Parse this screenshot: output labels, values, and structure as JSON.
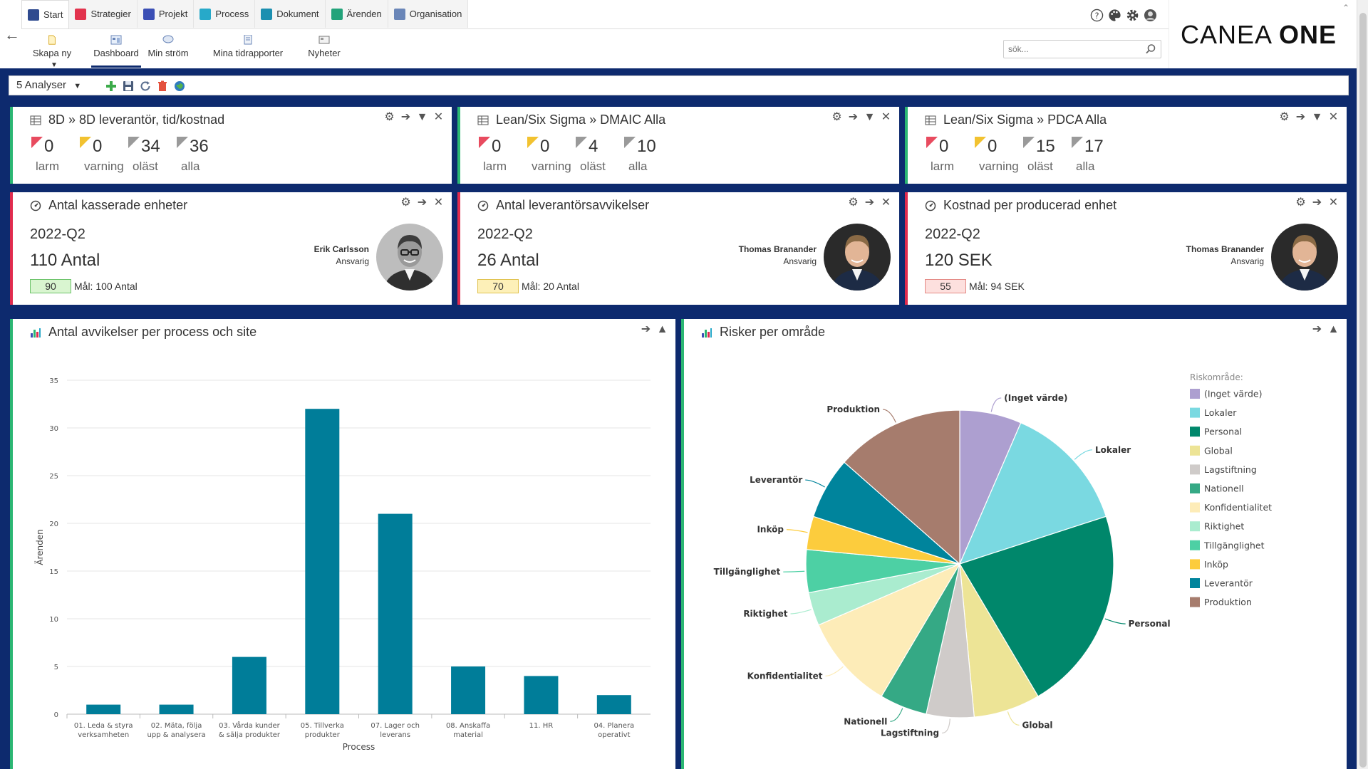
{
  "nav": {
    "tabs": [
      {
        "label": "Start",
        "icon": "home-icon",
        "color": "#2f4a8f"
      },
      {
        "label": "Strategier",
        "icon": "strategy-icon",
        "color": "#e2334d"
      },
      {
        "label": "Projekt",
        "icon": "project-icon",
        "color": "#3b4fb5"
      },
      {
        "label": "Process",
        "icon": "process-icon",
        "color": "#27a9c9"
      },
      {
        "label": "Dokument",
        "icon": "document-icon",
        "color": "#1c8fb0"
      },
      {
        "label": "Ärenden",
        "icon": "case-icon",
        "color": "#23a37a"
      },
      {
        "label": "Organisation",
        "icon": "organisation-icon",
        "color": "#6a86b8"
      }
    ]
  },
  "toolbar": {
    "create_label": "Skapa ny",
    "dashboard_label": "Dashboard",
    "stream_label": "Min ström",
    "timereports_label": "Mina tidrapporter",
    "news_label": "Nyheter"
  },
  "search": {
    "placeholder": "sök..."
  },
  "logo": {
    "left": "CANEA ",
    "right": "ONE"
  },
  "analyses": {
    "label": "5 Analyser"
  },
  "count_widgets": [
    {
      "title": "8D » 8D leverantör, tid/kostnad",
      "counts": [
        {
          "value": "0",
          "label": "larm",
          "color": "#e84b5f"
        },
        {
          "value": "0",
          "label": "varning",
          "color": "#f2c230"
        },
        {
          "value": "34",
          "label": "oläst",
          "color": "#9a9a9a"
        },
        {
          "value": "36",
          "label": "alla",
          "color": "#9a9a9a"
        }
      ]
    },
    {
      "title": "Lean/Six Sigma » DMAIC Alla",
      "counts": [
        {
          "value": "0",
          "label": "larm",
          "color": "#e84b5f"
        },
        {
          "value": "0",
          "label": "varning",
          "color": "#f2c230"
        },
        {
          "value": "4",
          "label": "oläst",
          "color": "#9a9a9a"
        },
        {
          "value": "10",
          "label": "alla",
          "color": "#9a9a9a"
        }
      ]
    },
    {
      "title": "Lean/Six Sigma » PDCA Alla",
      "counts": [
        {
          "value": "0",
          "label": "larm",
          "color": "#e84b5f"
        },
        {
          "value": "0",
          "label": "varning",
          "color": "#f2c230"
        },
        {
          "value": "15",
          "label": "oläst",
          "color": "#9a9a9a"
        },
        {
          "value": "17",
          "label": "alla",
          "color": "#9a9a9a"
        }
      ]
    }
  ],
  "kpi_widgets": [
    {
      "title": "Antal kasserade enheter",
      "period": "2022-Q2",
      "value": "110 Antal",
      "bar_value": "90",
      "bar_color": "#d9f5d0",
      "bar_border": "#6cc36a",
      "goal": "Mål: 100 Antal",
      "person": "Erik Carlsson",
      "role": "Ansvarig"
    },
    {
      "title": "Antal leverantörsavvikelser",
      "period": "2022-Q2",
      "value": "26 Antal",
      "bar_value": "70",
      "bar_color": "#fdf0b8",
      "bar_border": "#e0c250",
      "goal": "Mål: 20 Antal",
      "person": "Thomas Branander",
      "role": "Ansvarig"
    },
    {
      "title": "Kostnad per producerad enhet",
      "period": "2022-Q2",
      "value": "120 SEK",
      "bar_value": "55",
      "bar_color": "#fde0de",
      "bar_border": "#e48a86",
      "goal": "Mål: 94 SEK",
      "person": "Thomas Branander",
      "role": "Ansvarig"
    }
  ],
  "bar_widget": {
    "title": "Antal avvikelser per process och site"
  },
  "pie_widget": {
    "title": "Risker per område"
  },
  "chart_data": [
    {
      "type": "bar",
      "title": "",
      "xlabel": "Process",
      "ylabel": "Ärenden",
      "ylim": [
        0,
        35
      ],
      "yticks": [
        0,
        5,
        10,
        15,
        20,
        25,
        30,
        35
      ],
      "grid": true,
      "color": "#007d99",
      "categories": [
        [
          "01. Leda & styra",
          "verksamheten"
        ],
        [
          "02. Mäta, följa",
          "upp & analysera"
        ],
        [
          "03. Vårda kunder",
          "& sälja produkter"
        ],
        [
          "05. Tillverka",
          "produkter"
        ],
        [
          "07. Lager och",
          "leverans"
        ],
        [
          "08. Anskaffa",
          "material"
        ],
        [
          "11. HR"
        ],
        [
          "04. Planera",
          "operativt"
        ]
      ],
      "values": [
        1,
        1,
        6,
        32,
        21,
        5,
        4,
        2
      ]
    },
    {
      "type": "pie",
      "title": "",
      "legend_title": "Riskområde:",
      "legend_position": "right",
      "slices": [
        {
          "label": "(Inget värde)",
          "value": 6.5,
          "color": "#ad9fd0"
        },
        {
          "label": "Lokaler",
          "value": 13.5,
          "color": "#7ad9e1"
        },
        {
          "label": "Personal",
          "value": 21.5,
          "color": "#00876b"
        },
        {
          "label": "Global",
          "value": 7,
          "color": "#ede496"
        },
        {
          "label": "Lagstiftning",
          "value": 5,
          "color": "#cfcbc9"
        },
        {
          "label": "Nationell",
          "value": 5,
          "color": "#35a985"
        },
        {
          "label": "Konfidentialitet",
          "value": 10,
          "color": "#fdecb8"
        },
        {
          "label": "Riktighet",
          "value": 3.5,
          "color": "#aaeccf"
        },
        {
          "label": "Tillgänglighet",
          "value": 4.5,
          "color": "#4dd0a4"
        },
        {
          "label": "Inköp",
          "value": 3.5,
          "color": "#fccc3d"
        },
        {
          "label": "Leverantör",
          "value": 6.5,
          "color": "#00849c"
        },
        {
          "label": "Produktion",
          "value": 13.5,
          "color": "#a67c6d"
        }
      ]
    }
  ]
}
